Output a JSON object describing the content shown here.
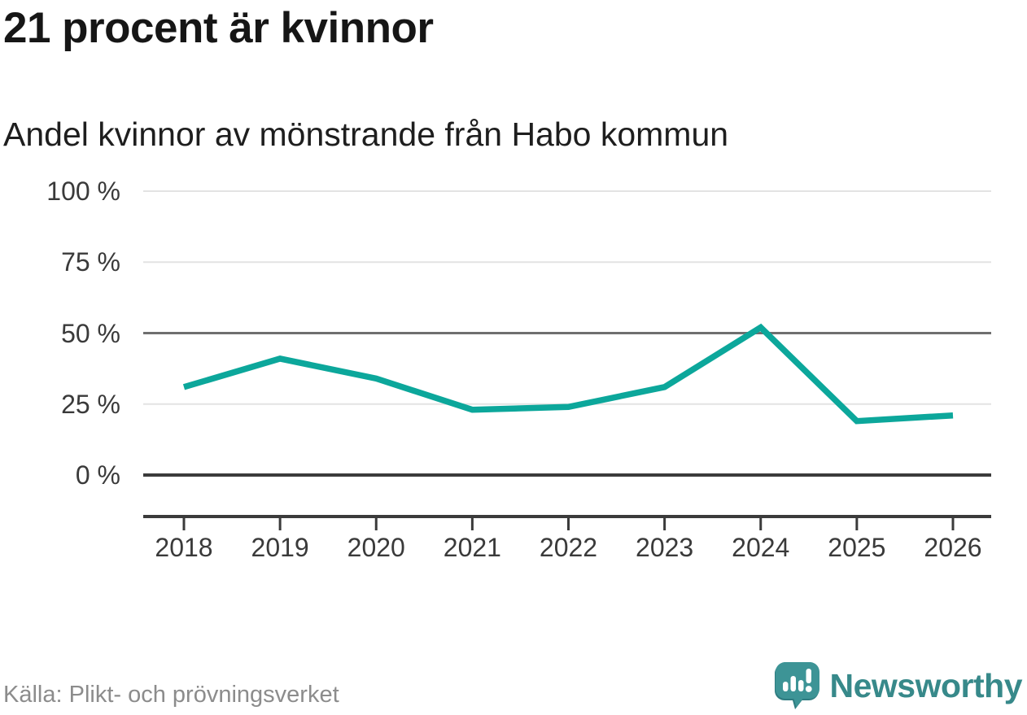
{
  "header": {
    "title": "21 procent är kvinnor",
    "subtitle": "Andel kvinnor av mönstrande från Habo kommun"
  },
  "footer": {
    "source": "Källa: Plikt- och prövningsverket",
    "brand": "Newsworthy"
  },
  "colors": {
    "line": "#0ca79b",
    "brand_teal": "#37898a",
    "icon_teal": "#3d9496",
    "icon_shadow": "#2e7c80",
    "axis_dark": "#3b3b3b",
    "grid_mid": "#6f6f6f",
    "grid_light": "#e3e3e3"
  },
  "chart_data": {
    "type": "line",
    "title": "21 procent är kvinnor",
    "subtitle": "Andel kvinnor av mönstrande från Habo kommun",
    "x": [
      2018,
      2019,
      2020,
      2021,
      2022,
      2023,
      2024,
      2025,
      2026
    ],
    "series": [
      {
        "name": "Andel kvinnor av mönstrande från Habo kommun",
        "values": [
          31,
          41,
          34,
          23,
          24,
          31,
          52,
          19,
          21
        ],
        "unit": "%"
      }
    ],
    "xlabel": "",
    "ylabel": "",
    "ylim": [
      0,
      100
    ],
    "yticks": [
      0,
      25,
      50,
      75,
      100
    ],
    "ytick_labels": [
      "0 %",
      "25 %",
      "50 %",
      "75 %",
      "100 %"
    ],
    "grid": "horizontal",
    "emphasized_yticks": [
      0,
      50
    ],
    "legend": "none",
    "line_color": "#0ca79b",
    "source": "Källa: Plikt- och prövningsverket"
  }
}
